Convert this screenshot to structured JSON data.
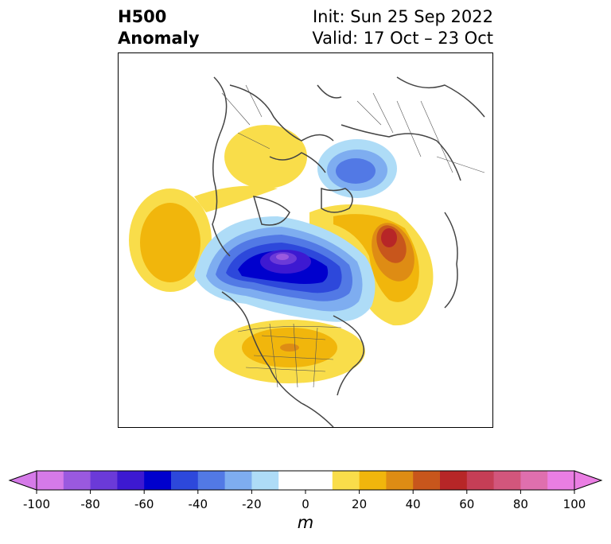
{
  "header": {
    "title_line1": "H500",
    "title_line2": "Anomaly",
    "init": "Init: Sun 25 Sep 2022",
    "valid": "Valid: 17 Oct – 23 Oct"
  },
  "map": {
    "projection": "north-polar stereographic",
    "variable": "500 hPa geopotential height anomaly",
    "anomaly_centers": [
      {
        "region": "Arctic Ocean / Canadian Arctic",
        "sign": "negative",
        "peak": "-90 to -100"
      },
      {
        "region": "North Pacific / Bering Sea",
        "sign": "positive",
        "peak": "20 to 30"
      },
      {
        "region": "Northwest Canada / Alaska",
        "sign": "positive",
        "peak": "10 to 20"
      },
      {
        "region": "Scandinavia / Northwest Russia",
        "sign": "negative",
        "peak": "-40 to -50"
      },
      {
        "region": "Central Siberia",
        "sign": "positive",
        "peak": "50 to 60"
      },
      {
        "region": "Central United States",
        "sign": "positive",
        "peak": "30 to 40"
      }
    ]
  },
  "colorbar": {
    "unit": "m",
    "min": -100,
    "max": 100,
    "step": 10,
    "extend": "both",
    "ticks": [
      "-100",
      "-80",
      "-60",
      "-40",
      "-20",
      "0",
      "20",
      "40",
      "60",
      "80",
      "100"
    ],
    "colors": [
      "#d57ae8",
      "#9a59df",
      "#6b3ad8",
      "#3d19d1",
      "#0000cd",
      "#2d48db",
      "#5279e5",
      "#7eadf0",
      "#aedcf7",
      "#ffffff",
      "#ffffff",
      "#f9dd4a",
      "#f1b60c",
      "#de8c14",
      "#c8561c",
      "#b72627",
      "#c53e56",
      "#d2567c",
      "#df6fae",
      "#ea7ee3"
    ]
  }
}
